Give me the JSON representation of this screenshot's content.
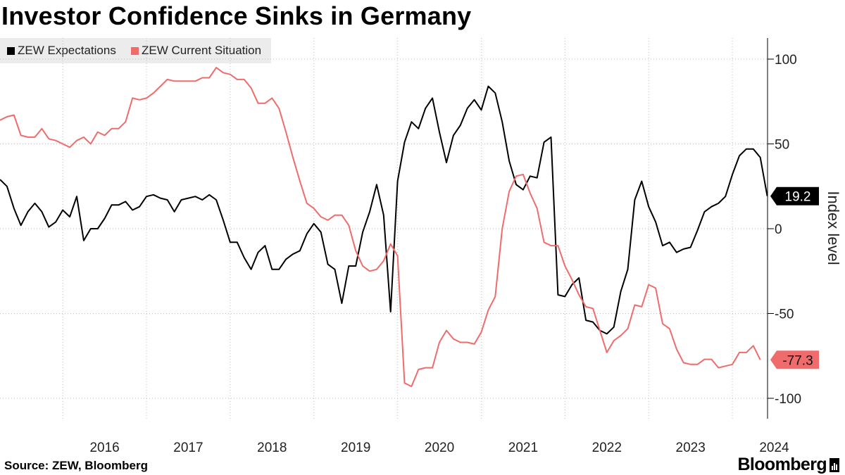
{
  "title": "Investor Confidence Sinks in Germany",
  "source": "Source: ZEW, Bloomberg",
  "brand": "Bloomberg",
  "colors": {
    "expectations": "#000000",
    "current": "#f06b6b",
    "grid": "#bdbdbd"
  },
  "chart_data": {
    "type": "line",
    "title": "Investor Confidence Sinks in Germany",
    "xlabel": "",
    "ylabel": "Index level",
    "ylim": [
      -115,
      115
    ],
    "yticks": [
      100,
      50,
      0,
      -50,
      -100
    ],
    "ytick_labels": [
      "100",
      "50",
      "0",
      "-50",
      "-100"
    ],
    "xlim": [
      2015.25,
      2024.42
    ],
    "xtick_years": [
      "2016",
      "2017",
      "2018",
      "2019",
      "2020",
      "2021",
      "2022",
      "2023",
      "2024"
    ],
    "legend": "top-left",
    "x_start": 2015.25,
    "x_step_months": 1,
    "series": [
      {
        "name": "ZEW Expectations",
        "color": "#000000",
        "end_label": "19.2",
        "values": [
          29,
          25,
          12,
          2,
          10,
          15,
          10,
          1,
          4,
          11,
          7,
          19,
          -7,
          0,
          0,
          6,
          14,
          14,
          16,
          11,
          13,
          19,
          20,
          18,
          17,
          10,
          17,
          18,
          19,
          17,
          20,
          17,
          5,
          -8,
          -8,
          -17,
          -24,
          -14,
          -10,
          -24,
          -24,
          -18,
          -15,
          -13,
          -3,
          3,
          -2,
          -21,
          -24,
          -44,
          -22,
          -22,
          -2,
          10,
          26,
          8,
          -49,
          28,
          51,
          63,
          59,
          71,
          77,
          57,
          39,
          55,
          61,
          71,
          76,
          70,
          84,
          80,
          63,
          40,
          26,
          23,
          31,
          30,
          51,
          54,
          -39,
          -40,
          -33,
          -29,
          -54,
          -55,
          -60,
          -62,
          -58,
          -37,
          -24,
          17,
          28,
          13,
          4,
          -10,
          -8,
          -14,
          -12,
          -11,
          -1,
          10,
          13,
          15,
          19,
          32,
          43,
          47,
          47,
          42,
          19.2
        ]
      },
      {
        "name": "ZEW Current Situation",
        "color": "#f06b6b",
        "end_label": "-77.3",
        "values": [
          64,
          66,
          67,
          55,
          54,
          54,
          59,
          53,
          52,
          50,
          48,
          52,
          54,
          50,
          57,
          55,
          59,
          59,
          63,
          77,
          76,
          77,
          80,
          84,
          88,
          87,
          87,
          87,
          87,
          89,
          89,
          95,
          92,
          91,
          88,
          88,
          83,
          74,
          74,
          77,
          71,
          57,
          42,
          28,
          15,
          12,
          7,
          5,
          8,
          8,
          2,
          -13,
          -22,
          -25,
          -24,
          -19,
          -9,
          -16,
          -91,
          -93,
          -83,
          -82,
          -82,
          -67,
          -60,
          -65,
          -67,
          -67,
          -68,
          -61,
          -48,
          -40,
          0,
          22,
          31,
          32,
          21,
          12,
          -8,
          -10,
          -10,
          -22,
          -30,
          -39,
          -46,
          -47,
          -60,
          -73,
          -66,
          -63,
          -59,
          -45,
          -46,
          -33,
          -35,
          -56,
          -59,
          -71,
          -79,
          -80,
          -80,
          -77,
          -77,
          -82,
          -81,
          -80,
          -73,
          -73,
          -69,
          -77.3
        ]
      }
    ]
  }
}
